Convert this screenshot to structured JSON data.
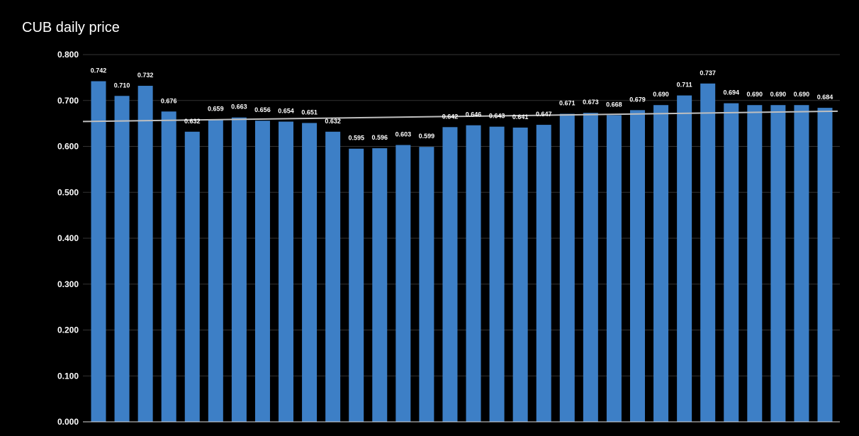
{
  "chart_data": {
    "type": "bar",
    "title": "CUB daily price",
    "xlabel": "",
    "ylabel": "",
    "ylim": [
      0,
      0.8
    ],
    "y_ticks": [
      "0.000",
      "0.100",
      "0.200",
      "0.300",
      "0.400",
      "0.500",
      "0.600",
      "0.700",
      "0.800"
    ],
    "grid": true,
    "trendline": true,
    "values": [
      0.742,
      0.71,
      0.732,
      0.676,
      0.632,
      0.659,
      0.663,
      0.656,
      0.654,
      0.651,
      0.632,
      0.595,
      0.596,
      0.603,
      0.599,
      0.642,
      0.646,
      0.643,
      0.641,
      0.647,
      0.671,
      0.673,
      0.668,
      0.679,
      0.69,
      0.711,
      0.737,
      0.694,
      0.69,
      0.69,
      0.69,
      0.684
    ],
    "value_labels": [
      "0.742",
      "0.710",
      "0.732",
      "0.676",
      "0.632",
      "0.659",
      "0.663",
      "0.656",
      "0.654",
      "0.651",
      "0.632",
      "0.595",
      "0.596",
      "0.603",
      "0.599",
      "0.642",
      "0.646",
      "0.643",
      "0.641",
      "0.647",
      "0.671",
      "0.673",
      "0.668",
      "0.679",
      "0.690",
      "0.711",
      "0.737",
      "0.694",
      "0.690",
      "0.690",
      "0.690",
      "0.684"
    ],
    "colors": {
      "bar": "#3d7fc6",
      "trendline": "#bfbfbf",
      "grid": "#333333",
      "axis": "#d9d9d9",
      "background": "#000000"
    }
  }
}
